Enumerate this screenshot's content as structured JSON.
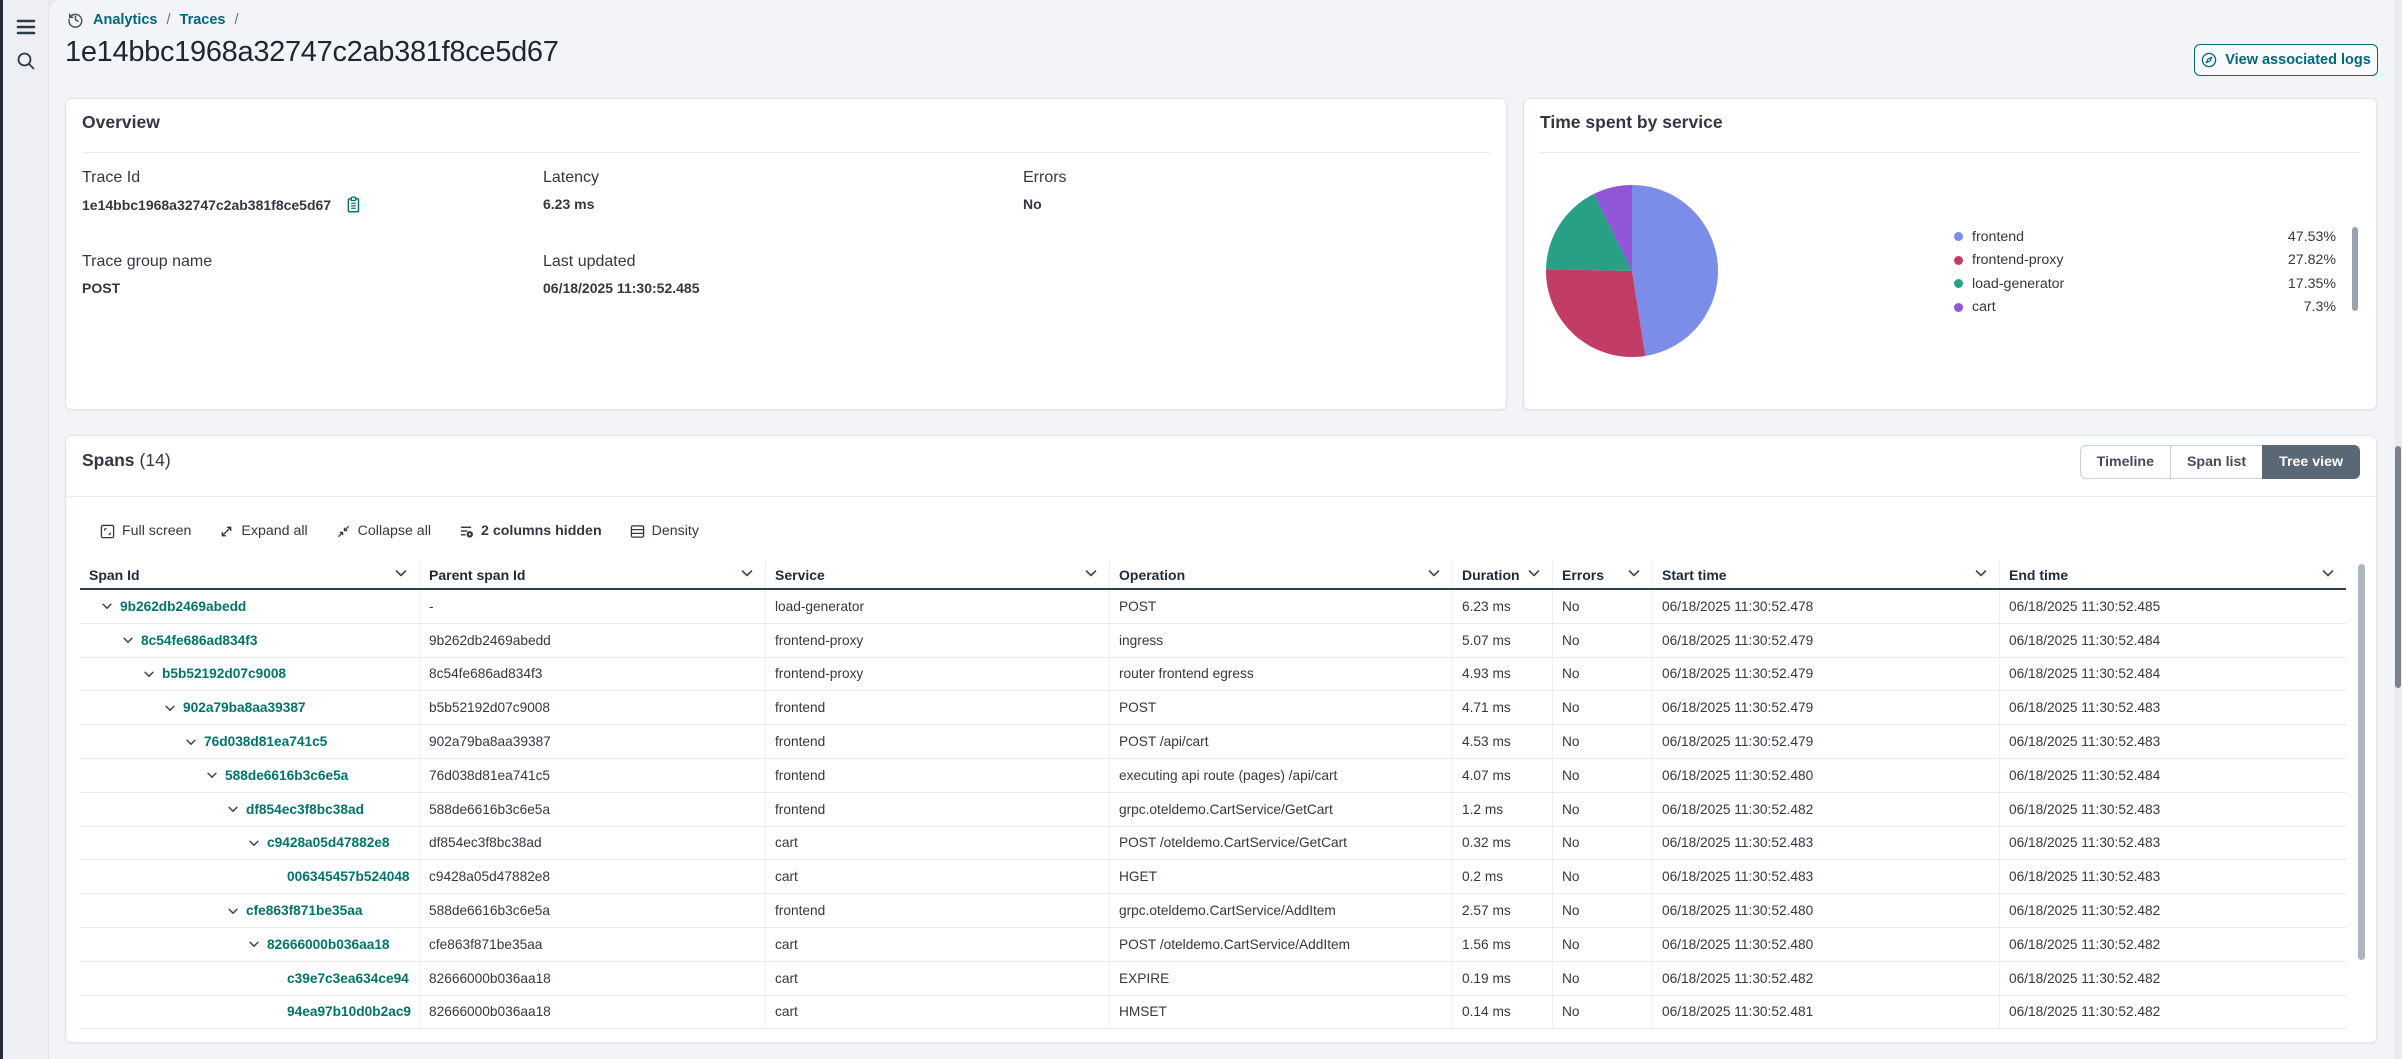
{
  "breadcrumb": {
    "items": [
      "Analytics",
      "Traces"
    ],
    "separator": "/"
  },
  "page": {
    "title": "1e14bbc1968a32747c2ab381f8ce5d67"
  },
  "header_actions": {
    "view_logs_label": "View associated logs"
  },
  "overview": {
    "title": "Overview",
    "fields": [
      {
        "label": "Trace Id",
        "value": "1e14bbc1968a32747c2ab381f8ce5d67"
      },
      {
        "label": "Latency",
        "value": "6.23 ms"
      },
      {
        "label": "Errors",
        "value": "No"
      },
      {
        "label": "Trace group name",
        "value": "POST"
      },
      {
        "label": "Last updated",
        "value": "06/18/2025 11:30:52.485"
      }
    ]
  },
  "time_spent_panel": {
    "title": "Time spent by service"
  },
  "chart_data": {
    "type": "pie",
    "title": "Time spent by service",
    "labels": [
      "frontend",
      "frontend-proxy",
      "load-generator",
      "cart"
    ],
    "values": [
      47.53,
      27.82,
      17.35,
      7.3
    ],
    "value_labels": [
      "47.53%",
      "27.82%",
      "17.35%",
      "7.3%"
    ],
    "colors": [
      "#7b8ce9",
      "#c23d66",
      "#27a086",
      "#9155d8"
    ],
    "start_angle": "top",
    "direction": "clockwise",
    "legend_position": "right"
  },
  "spans": {
    "title": "Spans",
    "count": "(14)",
    "views": [
      "Timeline",
      "Span list",
      "Tree view"
    ],
    "active_view": "Tree view",
    "toolbar": [
      {
        "label": "Full screen",
        "icon": "fullscreen-icon"
      },
      {
        "label": "Expand all",
        "icon": "expand-all-icon"
      },
      {
        "label": "Collapse all",
        "icon": "collapse-all-icon"
      },
      {
        "label": "2 columns hidden",
        "icon": "columns-hidden-icon"
      },
      {
        "label": "Density",
        "icon": "density-icon"
      }
    ],
    "columns": [
      "Span Id",
      "Parent span Id",
      "Service",
      "Operation",
      "Duration",
      "Errors",
      "Start time",
      "End time"
    ],
    "rows": [
      {
        "span_id": "9b262db2469abedd",
        "level": 0,
        "expandable": true,
        "parent": "-",
        "service": "load-generator",
        "operation": "POST",
        "duration": "6.23 ms",
        "errors": "No",
        "start": "06/18/2025 11:30:52.478",
        "end": "06/18/2025 11:30:52.485"
      },
      {
        "span_id": "8c54fe686ad834f3",
        "level": 1,
        "expandable": true,
        "parent": "9b262db2469abedd",
        "service": "frontend-proxy",
        "operation": "ingress",
        "duration": "5.07 ms",
        "errors": "No",
        "start": "06/18/2025 11:30:52.479",
        "end": "06/18/2025 11:30:52.484"
      },
      {
        "span_id": "b5b52192d07c9008",
        "level": 2,
        "expandable": true,
        "parent": "8c54fe686ad834f3",
        "service": "frontend-proxy",
        "operation": "router frontend egress",
        "duration": "4.93 ms",
        "errors": "No",
        "start": "06/18/2025 11:30:52.479",
        "end": "06/18/2025 11:30:52.484"
      },
      {
        "span_id": "902a79ba8aa39387",
        "level": 3,
        "expandable": true,
        "parent": "b5b52192d07c9008",
        "service": "frontend",
        "operation": "POST",
        "duration": "4.71 ms",
        "errors": "No",
        "start": "06/18/2025 11:30:52.479",
        "end": "06/18/2025 11:30:52.483"
      },
      {
        "span_id": "76d038d81ea741c5",
        "level": 4,
        "expandable": true,
        "parent": "902a79ba8aa39387",
        "service": "frontend",
        "operation": "POST /api/cart",
        "duration": "4.53 ms",
        "errors": "No",
        "start": "06/18/2025 11:30:52.479",
        "end": "06/18/2025 11:30:52.483"
      },
      {
        "span_id": "588de6616b3c6e5a",
        "level": 5,
        "expandable": true,
        "parent": "76d038d81ea741c5",
        "service": "frontend",
        "operation": "executing api route (pages) /api/cart",
        "duration": "4.07 ms",
        "errors": "No",
        "start": "06/18/2025 11:30:52.480",
        "end": "06/18/2025 11:30:52.484"
      },
      {
        "span_id": "df854ec3f8bc38ad",
        "level": 6,
        "expandable": true,
        "parent": "588de6616b3c6e5a",
        "service": "frontend",
        "operation": "grpc.oteldemo.CartService/GetCart",
        "duration": "1.2 ms",
        "errors": "No",
        "start": "06/18/2025 11:30:52.482",
        "end": "06/18/2025 11:30:52.483"
      },
      {
        "span_id": "c9428a05d47882e8",
        "level": 7,
        "expandable": true,
        "parent": "df854ec3f8bc38ad",
        "service": "cart",
        "operation": "POST /oteldemo.CartService/GetCart",
        "duration": "0.32 ms",
        "errors": "No",
        "start": "06/18/2025 11:30:52.483",
        "end": "06/18/2025 11:30:52.483"
      },
      {
        "span_id": "006345457b524048",
        "level": 8,
        "expandable": false,
        "parent": "c9428a05d47882e8",
        "service": "cart",
        "operation": "HGET",
        "duration": "0.2 ms",
        "errors": "No",
        "start": "06/18/2025 11:30:52.483",
        "end": "06/18/2025 11:30:52.483"
      },
      {
        "span_id": "cfe863f871be35aa",
        "level": 6,
        "expandable": true,
        "parent": "588de6616b3c6e5a",
        "service": "frontend",
        "operation": "grpc.oteldemo.CartService/AddItem",
        "duration": "2.57 ms",
        "errors": "No",
        "start": "06/18/2025 11:30:52.480",
        "end": "06/18/2025 11:30:52.482"
      },
      {
        "span_id": "82666000b036aa18",
        "level": 7,
        "expandable": true,
        "parent": "cfe863f871be35aa",
        "service": "cart",
        "operation": "POST /oteldemo.CartService/AddItem",
        "duration": "1.56 ms",
        "errors": "No",
        "start": "06/18/2025 11:30:52.480",
        "end": "06/18/2025 11:30:52.482"
      },
      {
        "span_id": "c39e7c3ea634ce94",
        "level": 8,
        "expandable": false,
        "parent": "82666000b036aa18",
        "service": "cart",
        "operation": "EXPIRE",
        "duration": "0.19 ms",
        "errors": "No",
        "start": "06/18/2025 11:30:52.482",
        "end": "06/18/2025 11:30:52.482"
      },
      {
        "span_id": "94ea97b10d0b2ac9",
        "level": 8,
        "expandable": false,
        "parent": "82666000b036aa18",
        "service": "cart",
        "operation": "HMSET",
        "duration": "0.14 ms",
        "errors": "No",
        "start": "06/18/2025 11:30:52.481",
        "end": "06/18/2025 11:30:52.482"
      }
    ]
  },
  "colors": {
    "accent_primary": "#00677b",
    "accent_link": "#00736a",
    "tab_selected_bg": "#5a6876",
    "text": "#343741"
  }
}
